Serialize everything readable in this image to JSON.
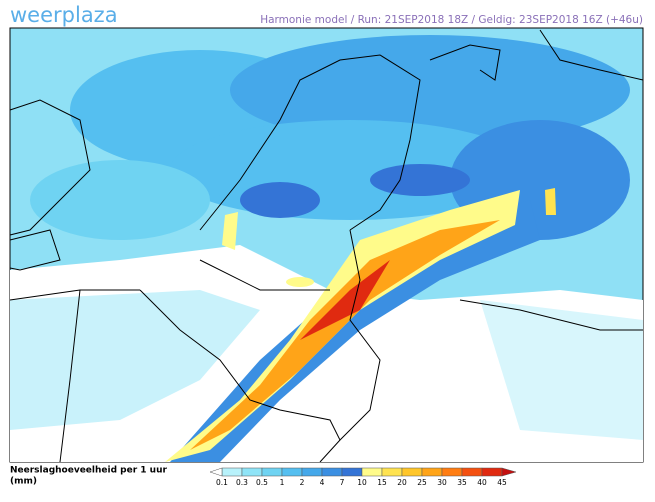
{
  "header": {
    "brand": "weerplaza",
    "info": "Harmonie model / Run: 21SEP2018 18Z / Geldig: 23SEP2018 16Z (+46u)"
  },
  "legend": {
    "title_line1": "Neerslaghoeveelheid per 1 uur",
    "title_line2": "(mm)",
    "items": [
      {
        "label": 0.1,
        "color": "#b8f2fb"
      },
      {
        "label": 0.3,
        "color": "#8fe4f7"
      },
      {
        "label": 0.5,
        "color": "#6fd3f2"
      },
      {
        "label": 1,
        "color": "#55bff0"
      },
      {
        "label": 2,
        "color": "#45a8ea"
      },
      {
        "label": 4,
        "color": "#3b8fe2"
      },
      {
        "label": 7,
        "color": "#3474d6"
      },
      {
        "label": 10,
        "color": "#fffb8a"
      },
      {
        "label": 15,
        "color": "#ffe350"
      },
      {
        "label": 20,
        "color": "#ffc62a"
      },
      {
        "label": 25,
        "color": "#ffa418"
      },
      {
        "label": 30,
        "color": "#ff7d12"
      },
      {
        "label": 35,
        "color": "#f45010"
      },
      {
        "label": 40,
        "color": "#e02a10"
      },
      {
        "label": 45,
        "color": "#c41010"
      }
    ]
  }
}
